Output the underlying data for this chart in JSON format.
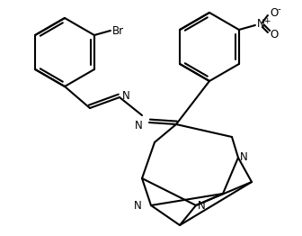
{
  "background": "#ffffff",
  "line_color": "#000000",
  "line_width": 1.5,
  "font_size": 8.5,
  "fig_width": 3.36,
  "fig_height": 2.62,
  "dpi": 100,
  "xlim": [
    0,
    336
  ],
  "ylim": [
    0,
    262
  ]
}
